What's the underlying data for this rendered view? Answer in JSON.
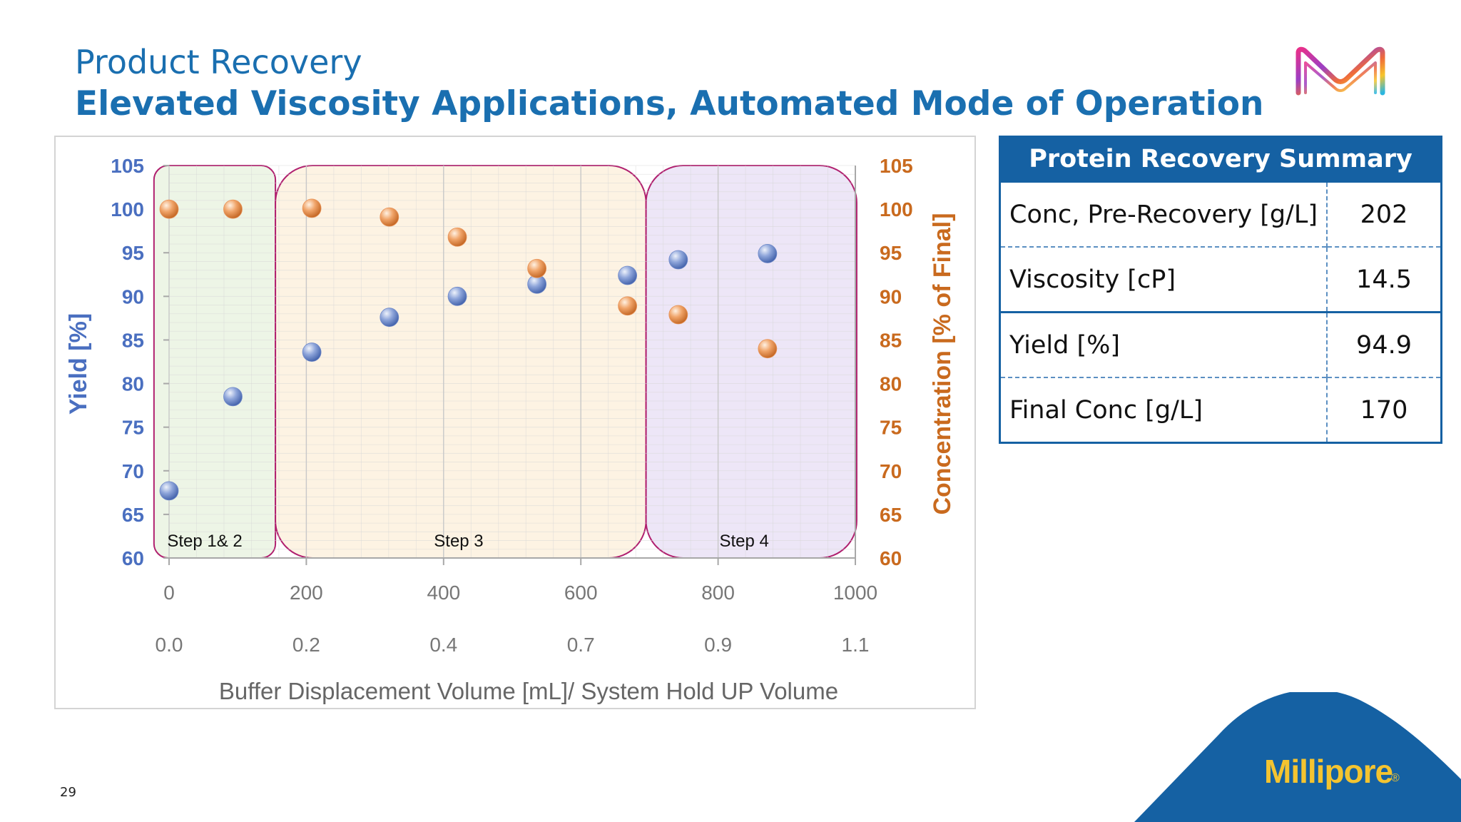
{
  "header": {
    "title": "Product Recovery",
    "subtitle": "Elevated Viscosity Applications, Automated Mode of Operation"
  },
  "logo": {
    "icon": "merck-m-logo-icon"
  },
  "chart_data": {
    "type": "scatter",
    "xlabel": "Buffer Displacement Volume [mL]/ System Hold UP Volume",
    "ylabel": "Yield [%]",
    "y2label": "Concentration [% of Final]",
    "xlim": [
      0,
      1000
    ],
    "ylim": [
      60,
      105
    ],
    "y2lim": [
      60,
      105
    ],
    "x_ticks": [
      0,
      200,
      400,
      600,
      800,
      1000
    ],
    "x_secondary_ticks": [
      "0.0",
      "0.2",
      "0.4",
      "0.7",
      "0.9",
      "1.1"
    ],
    "y_ticks": [
      60,
      65,
      70,
      75,
      80,
      85,
      90,
      95,
      100,
      105
    ],
    "y2_ticks": [
      60,
      65,
      70,
      75,
      80,
      85,
      90,
      95,
      100,
      105
    ],
    "grid": true,
    "regions": [
      {
        "label": "Step 1& 2",
        "x_range": [
          -22,
          155
        ],
        "color": "#edf5e6"
      },
      {
        "label": "Step 3",
        "x_range": [
          155,
          695
        ],
        "color": "#fdf3e3"
      },
      {
        "label": "Step 4",
        "x_range": [
          695,
          1002
        ],
        "color": "#ede6f7"
      }
    ],
    "series": [
      {
        "axis": "left",
        "color": "#6f89c9",
        "points": [
          {
            "x": 0,
            "y": 67.7
          },
          {
            "x": 93,
            "y": 78.5
          },
          {
            "x": 208,
            "y": 83.6
          },
          {
            "x": 321,
            "y": 87.6
          },
          {
            "x": 420,
            "y": 90.0
          },
          {
            "x": 536,
            "y": 91.4
          },
          {
            "x": 668,
            "y": 92.4
          },
          {
            "x": 742,
            "y": 94.2
          },
          {
            "x": 872,
            "y": 94.9
          }
        ]
      },
      {
        "axis": "right",
        "color": "#e8945a",
        "points": [
          {
            "x": 0,
            "y": 100
          },
          {
            "x": 93,
            "y": 100
          },
          {
            "x": 208,
            "y": 100.1
          },
          {
            "x": 321,
            "y": 99.1
          },
          {
            "x": 420,
            "y": 96.8
          },
          {
            "x": 536,
            "y": 93.2
          },
          {
            "x": 668,
            "y": 88.9
          },
          {
            "x": 742,
            "y": 87.9
          },
          {
            "x": 872,
            "y": 84.0
          }
        ]
      }
    ],
    "colors": {
      "left_axis": "#4a6fc0",
      "right_axis": "#c96a1e",
      "region_border": "#b0206f"
    }
  },
  "summary": {
    "title": "Protein Recovery Summary",
    "rows": [
      {
        "label": "Conc, Pre-Recovery [g/L]",
        "value": "202"
      },
      {
        "label": "Viscosity [cP]",
        "value": "14.5"
      },
      {
        "label": "Yield [%]",
        "value": "94.9"
      },
      {
        "label": "Final Conc [g/L]",
        "value": "170"
      }
    ]
  },
  "footer": {
    "page_number": "29",
    "brand": "Millipore",
    "brand_mark": "®"
  },
  "colors": {
    "primary_blue": "#1a6fb0",
    "table_blue": "#1561a3",
    "brand_yellow": "#f4c430"
  }
}
